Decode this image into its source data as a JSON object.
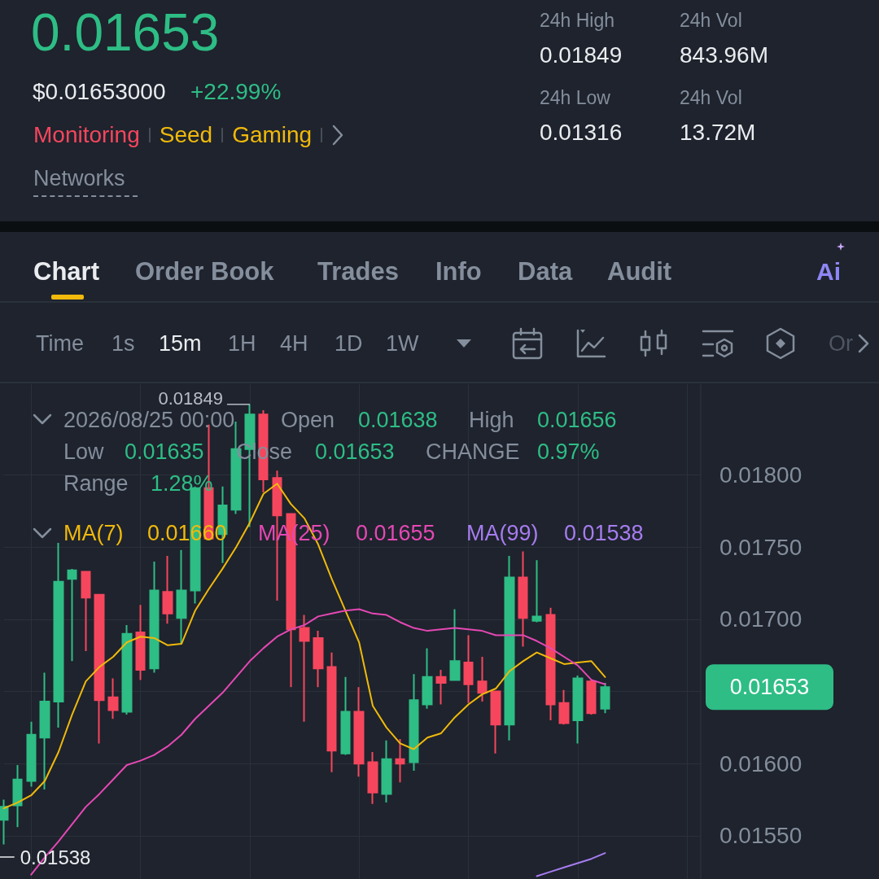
{
  "chart_data": {
    "type": "candlestick",
    "title": "0.01653",
    "categories": [
      null,
      null,
      null,
      null,
      null,
      null,
      null,
      null,
      null,
      null,
      null,
      null,
      null,
      null,
      null,
      null,
      null,
      null,
      null,
      null,
      null,
      null,
      null,
      null,
      null,
      null,
      null,
      null,
      null,
      null,
      null,
      null,
      null,
      null,
      null,
      null,
      null,
      null,
      null,
      null,
      null,
      null,
      null,
      null,
      null
    ],
    "ohlc": [
      [
        0.01561,
        0.01575,
        0.01544,
        0.0157
      ],
      [
        0.01571,
        0.01599,
        0.01556,
        0.01589
      ],
      [
        0.01588,
        0.01629,
        0.01584,
        0.0162
      ],
      [
        0.01618,
        0.01663,
        0.01582,
        0.01643
      ],
      [
        0.01643,
        0.01753,
        0.01625,
        0.01726
      ],
      [
        0.01728,
        0.01735,
        0.01671,
        0.01734
      ],
      [
        0.01733,
        0.01733,
        0.01678,
        0.01715
      ],
      [
        0.01717,
        0.01717,
        0.01614,
        0.01644
      ],
      [
        0.01646,
        0.01659,
        0.01631,
        0.01637
      ],
      [
        0.01636,
        0.01696,
        0.01634,
        0.0169
      ],
      [
        0.01691,
        0.0171,
        0.01658,
        0.01665
      ],
      [
        0.01666,
        0.0174,
        0.01663,
        0.0172
      ],
      [
        0.01719,
        0.01744,
        0.01697,
        0.01704
      ],
      [
        0.01701,
        0.01748,
        0.01683,
        0.0172
      ],
      [
        0.0172,
        0.01792,
        0.01711,
        0.01791
      ],
      [
        0.01791,
        0.01835,
        0.01756,
        0.01756
      ],
      [
        0.01759,
        0.01792,
        0.01739,
        0.01779
      ],
      [
        0.01776,
        0.01837,
        0.01773,
        0.01818
      ],
      [
        0.01818,
        0.01849,
        0.01764,
        0.01842
      ],
      [
        0.01842,
        0.01845,
        0.01788,
        0.01797
      ],
      [
        0.01798,
        0.01803,
        0.01713,
        0.01772
      ],
      [
        0.01773,
        0.01773,
        0.01653,
        0.01693
      ],
      [
        0.01694,
        0.01703,
        0.01629,
        0.01685
      ],
      [
        0.01687,
        0.01692,
        0.01653,
        0.01666
      ],
      [
        0.01667,
        0.01677,
        0.01594,
        0.01609
      ],
      [
        0.01607,
        0.0166,
        0.01606,
        0.01636
      ],
      [
        0.01636,
        0.01653,
        0.01591,
        0.016
      ],
      [
        0.01601,
        0.01608,
        0.01572,
        0.0158
      ],
      [
        0.01579,
        0.01616,
        0.01573,
        0.01603
      ],
      [
        0.01603,
        0.01617,
        0.01587,
        0.016
      ],
      [
        0.01601,
        0.01662,
        0.01595,
        0.01644
      ],
      [
        0.01641,
        0.0168,
        0.01638,
        0.0166
      ],
      [
        0.0166,
        0.01665,
        0.01641,
        0.01656
      ],
      [
        0.01658,
        0.01707,
        0.01658,
        0.01671
      ],
      [
        0.0167,
        0.01689,
        0.01642,
        0.01655
      ],
      [
        0.01657,
        0.01674,
        0.01643,
        0.01649
      ],
      [
        0.0165,
        0.0165,
        0.01607,
        0.01627
      ],
      [
        0.01627,
        0.01744,
        0.01616,
        0.01729
      ],
      [
        0.01729,
        0.01747,
        0.01681,
        0.01701
      ],
      [
        0.01699,
        0.01741,
        0.01698,
        0.01702
      ],
      [
        0.01703,
        0.01708,
        0.0163,
        0.01641
      ],
      [
        0.01642,
        0.01651,
        0.01627,
        0.01628
      ],
      [
        0.0163,
        0.01661,
        0.01614,
        0.01659
      ],
      [
        0.01657,
        0.01658,
        0.01634,
        0.01635
      ],
      [
        0.01638,
        0.01656,
        0.01635,
        0.01653
      ]
    ],
    "colors": [
      "#2ebd85",
      "#2ebd85",
      "#2ebd85",
      "#2ebd85",
      "#2ebd85",
      "#2ebd85",
      "#f6465d",
      "#f6465d",
      "#f6465d",
      "#2ebd85",
      "#f6465d",
      "#2ebd85",
      "#f6465d",
      "#2ebd85",
      "#2ebd85",
      "#f6465d",
      "#2ebd85",
      "#2ebd85",
      "#2ebd85",
      "#f6465d",
      "#f6465d",
      "#f6465d",
      "#f6465d",
      "#f6465d",
      "#f6465d",
      "#2ebd85",
      "#f6465d",
      "#f6465d",
      "#2ebd85",
      "#f6465d",
      "#2ebd85",
      "#2ebd85",
      "#f6465d",
      "#2ebd85",
      "#f6465d",
      "#f6465d",
      "#f6465d",
      "#2ebd85",
      "#f6465d",
      "#2ebd85",
      "#f6465d",
      "#f6465d",
      "#2ebd85",
      "#f6465d",
      "#2ebd85"
    ],
    "series": [
      {
        "name": "MA(7)",
        "type": "line",
        "color": "#f0b90b",
        "values": [
          0.01569,
          0.01573,
          0.01578,
          0.01588,
          0.01608,
          0.01634,
          0.01657,
          0.01667,
          0.01674,
          0.01684,
          0.01688,
          0.01687,
          0.01682,
          0.01683,
          0.01706,
          0.01721,
          0.01735,
          0.0175,
          0.01767,
          0.01787,
          0.01794,
          0.0178,
          0.0177,
          0.01752,
          0.01728,
          0.01706,
          0.01684,
          0.0164,
          0.01625,
          0.01614,
          0.0161,
          0.01618,
          0.01621,
          0.01632,
          0.01641,
          0.01648,
          0.01652,
          0.01664,
          0.01671,
          0.01677,
          0.01673,
          0.01669,
          0.0167,
          0.01671,
          0.0166
        ]
      },
      {
        "name": "MA(25)",
        "type": "line",
        "color": "#e548b4",
        "values": [
          null,
          null,
          0.01523,
          0.01535,
          0.01546,
          0.01558,
          0.0157,
          0.01579,
          0.01589,
          0.01599,
          0.01602,
          0.01606,
          0.01612,
          0.0162,
          0.01631,
          0.0164,
          0.01649,
          0.0166,
          0.01671,
          0.0168,
          0.01688,
          0.01693,
          0.01696,
          0.01702,
          0.01704,
          0.01706,
          0.01707,
          0.01704,
          0.01703,
          0.01698,
          0.01694,
          0.01692,
          0.01693,
          0.01694,
          0.01693,
          0.01692,
          0.01689,
          0.01689,
          0.01689,
          0.01685,
          0.0168,
          0.01674,
          0.01668,
          0.01658,
          0.01655
        ]
      },
      {
        "name": "MA(99)",
        "type": "line",
        "color": "#a77cf0",
        "values": [
          null,
          null,
          null,
          null,
          null,
          null,
          null,
          null,
          null,
          null,
          null,
          null,
          null,
          null,
          null,
          null,
          null,
          null,
          null,
          null,
          null,
          null,
          null,
          null,
          null,
          null,
          null,
          null,
          null,
          null,
          null,
          null,
          null,
          null,
          null,
          null,
          null,
          null,
          null,
          0.01522,
          0.01525,
          0.01528,
          0.01531,
          0.01534,
          0.01538
        ]
      }
    ],
    "ylim": [
      0.0152,
      0.01863
    ],
    "yticks": [
      {
        "value": 0.0155,
        "label": "0.01550"
      },
      {
        "value": 0.016,
        "label": "0.01600"
      },
      {
        "value": 0.0165,
        "label": null
      },
      {
        "value": 0.017,
        "label": "0.01700"
      },
      {
        "value": 0.0175,
        "label": "0.01750"
      },
      {
        "value": 0.018,
        "label": "0.01800"
      }
    ],
    "grid": true,
    "legend": "top left",
    "tick_labels": "y",
    "annotations": [
      "$0.01653000",
      "+22.99%",
      "Monitoring",
      "Seed",
      "Gaming",
      "Networks",
      "24h High",
      "0.01849",
      "24h Vol",
      "843.96M",
      "24h Low",
      "0.01316",
      "24h Vol",
      "13.72M",
      "Chart",
      "Order Book",
      "Trades",
      "Info",
      "Data",
      "Audit",
      "Ai",
      "Time",
      "1s",
      "15m",
      "1H",
      "4H",
      "1D",
      "1W",
      "Or",
      "2026/08/25 00:00",
      "Open",
      "0.01638",
      "High",
      "0.01656",
      "Low",
      "0.01635",
      "Close",
      "0.01653",
      "CHANGE",
      "0.97%",
      "Range",
      "1.28%",
      "0.01660",
      "0.01655",
      "0.01538",
      "0.01849",
      "0.01538",
      "0.01653"
    ]
  }
}
